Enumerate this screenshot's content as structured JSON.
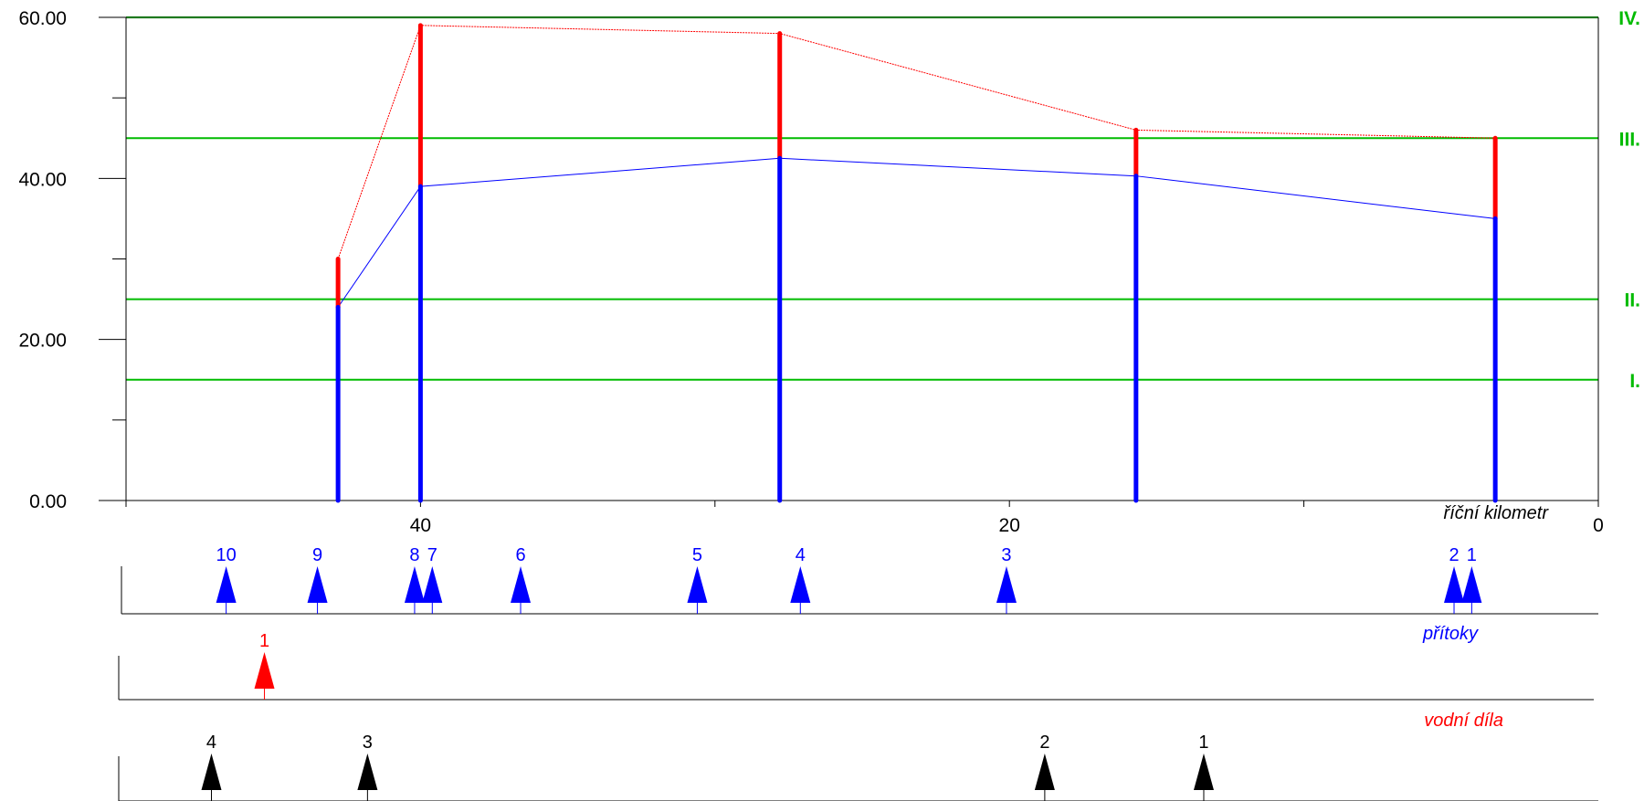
{
  "chart_data": {
    "type": "bar",
    "x_axis": {
      "label": "říční kilometr",
      "range": [
        50,
        0
      ],
      "tick_labels": [
        "40",
        "20",
        "0"
      ],
      "tick_values": [
        40,
        20,
        0
      ]
    },
    "y_axis": {
      "range": [
        0,
        60
      ],
      "tick_labels": [
        "0.00",
        "20.00",
        "40.00",
        "60.00"
      ],
      "tick_values": [
        0,
        20,
        40,
        60
      ],
      "minor_ticks": [
        10,
        30,
        50
      ]
    },
    "class_lines": [
      {
        "label": "I.",
        "value": 15
      },
      {
        "label": "II.",
        "value": 25
      },
      {
        "label": "III.",
        "value": 45
      },
      {
        "label": "IV.",
        "value": 60
      }
    ],
    "profiles": [
      {
        "km": 42.8,
        "blue": 24,
        "red": 30
      },
      {
        "km": 40.0,
        "blue": 39,
        "red": 59
      },
      {
        "km": 27.8,
        "blue": 42.5,
        "red": 58
      },
      {
        "km": 15.7,
        "blue": 40.3,
        "red": 46
      },
      {
        "km": 3.5,
        "blue": 35,
        "red": 45
      }
    ],
    "colors": {
      "blue": "#0000ff",
      "red": "#ff0000",
      "green": "#00bb00",
      "black": "#000000"
    },
    "tracks": [
      {
        "label": "přítoky",
        "color": "#0000ff",
        "markers": [
          {
            "label": "10",
            "km": 46.6
          },
          {
            "label": "9",
            "km": 43.5
          },
          {
            "label": "8",
            "km": 40.2
          },
          {
            "label": "7",
            "km": 39.6
          },
          {
            "label": "6",
            "km": 36.6
          },
          {
            "label": "5",
            "km": 30.6
          },
          {
            "label": "4",
            "km": 27.1
          },
          {
            "label": "3",
            "km": 20.1
          },
          {
            "label": "2",
            "km": 4.9
          },
          {
            "label": "1",
            "km": 4.3
          }
        ]
      },
      {
        "label": "vodní díla",
        "color": "#ff0000",
        "markers": [
          {
            "label": "1",
            "km": 45.3
          }
        ]
      },
      {
        "label": "",
        "color": "#000000",
        "markers": [
          {
            "label": "4",
            "km": 47.1
          },
          {
            "label": "3",
            "km": 41.8
          },
          {
            "label": "2",
            "km": 18.8
          },
          {
            "label": "1",
            "km": 13.4
          }
        ]
      }
    ]
  }
}
